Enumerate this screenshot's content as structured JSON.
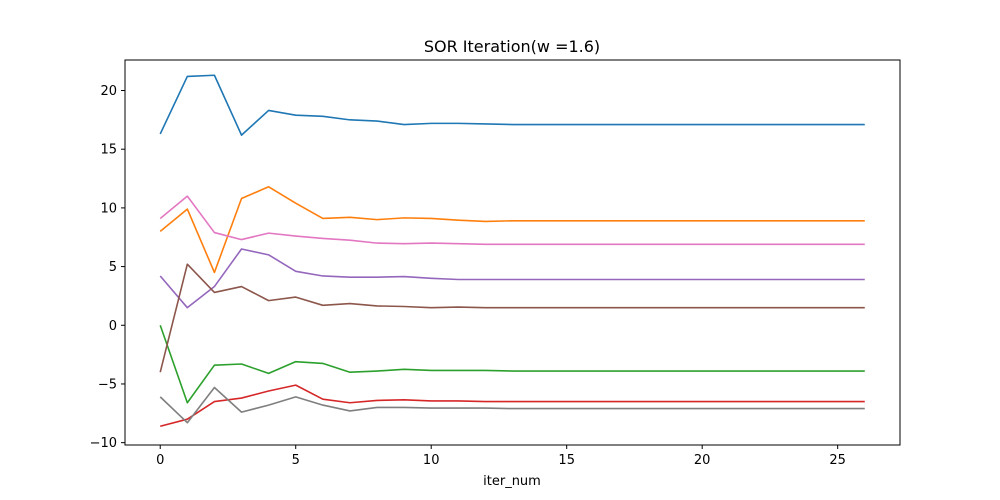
{
  "chart_data": {
    "type": "line",
    "title": "SOR Iteration(w =1.6)",
    "xlabel": "iter_num",
    "ylabel": "",
    "xlim": [
      -1.3,
      27.3
    ],
    "ylim": [
      -10.2,
      22.6
    ],
    "xticks": [
      0,
      5,
      10,
      15,
      20,
      25
    ],
    "yticks": [
      -10,
      -5,
      0,
      5,
      10,
      15,
      20
    ],
    "grid": false,
    "x": [
      0,
      1,
      2,
      3,
      4,
      5,
      6,
      7,
      8,
      9,
      10,
      11,
      12,
      13,
      14,
      15,
      16,
      17,
      18,
      19,
      20,
      21,
      22,
      23,
      24,
      25,
      26
    ],
    "series": [
      {
        "color": "#1f77b4",
        "values": [
          16.3,
          21.2,
          21.3,
          16.2,
          18.3,
          17.9,
          17.8,
          17.5,
          17.4,
          17.1,
          17.2,
          17.2,
          17.15,
          17.1,
          17.1,
          17.1,
          17.1,
          17.1,
          17.1,
          17.1,
          17.1,
          17.1,
          17.1,
          17.1,
          17.1,
          17.1,
          17.1
        ]
      },
      {
        "color": "#ff7f0e",
        "values": [
          8.0,
          9.9,
          4.5,
          10.8,
          11.8,
          10.4,
          9.1,
          9.2,
          9.0,
          9.15,
          9.1,
          8.95,
          8.85,
          8.9,
          8.9,
          8.9,
          8.9,
          8.9,
          8.9,
          8.9,
          8.9,
          8.9,
          8.9,
          8.9,
          8.9,
          8.9,
          8.9
        ]
      },
      {
        "color": "#2ca02c",
        "values": [
          0.0,
          -6.6,
          -3.4,
          -3.3,
          -4.1,
          -3.1,
          -3.25,
          -4.0,
          -3.9,
          -3.75,
          -3.85,
          -3.85,
          -3.85,
          -3.9,
          -3.9,
          -3.9,
          -3.9,
          -3.9,
          -3.9,
          -3.9,
          -3.9,
          -3.9,
          -3.9,
          -3.9,
          -3.9,
          -3.9,
          -3.9
        ]
      },
      {
        "color": "#d62728",
        "values": [
          -8.6,
          -8.0,
          -6.5,
          -6.2,
          -5.6,
          -5.1,
          -6.3,
          -6.6,
          -6.4,
          -6.35,
          -6.45,
          -6.45,
          -6.5,
          -6.5,
          -6.5,
          -6.5,
          -6.5,
          -6.5,
          -6.5,
          -6.5,
          -6.5,
          -6.5,
          -6.5,
          -6.5,
          -6.5,
          -6.5,
          -6.5
        ]
      },
      {
        "color": "#9467bd",
        "values": [
          4.2,
          1.5,
          3.3,
          6.5,
          6.0,
          4.6,
          4.2,
          4.1,
          4.1,
          4.15,
          4.0,
          3.9,
          3.9,
          3.9,
          3.9,
          3.9,
          3.9,
          3.9,
          3.9,
          3.9,
          3.9,
          3.9,
          3.9,
          3.9,
          3.9,
          3.9,
          3.9
        ]
      },
      {
        "color": "#8c564b",
        "values": [
          -4.0,
          5.2,
          2.8,
          3.3,
          2.1,
          2.4,
          1.7,
          1.85,
          1.65,
          1.6,
          1.5,
          1.55,
          1.5,
          1.5,
          1.5,
          1.5,
          1.5,
          1.5,
          1.5,
          1.5,
          1.5,
          1.5,
          1.5,
          1.5,
          1.5,
          1.5,
          1.5
        ]
      },
      {
        "color": "#e377c2",
        "values": [
          9.1,
          11.0,
          7.9,
          7.3,
          7.85,
          7.6,
          7.4,
          7.25,
          7.0,
          6.95,
          7.0,
          6.95,
          6.9,
          6.9,
          6.9,
          6.9,
          6.9,
          6.9,
          6.9,
          6.9,
          6.9,
          6.9,
          6.9,
          6.9,
          6.9,
          6.9,
          6.9
        ]
      },
      {
        "color": "#7f7f7f",
        "values": [
          -6.1,
          -8.3,
          -5.3,
          -7.4,
          -6.8,
          -6.1,
          -6.8,
          -7.3,
          -7.0,
          -7.0,
          -7.05,
          -7.05,
          -7.05,
          -7.1,
          -7.1,
          -7.1,
          -7.1,
          -7.1,
          -7.1,
          -7.1,
          -7.1,
          -7.1,
          -7.1,
          -7.1,
          -7.1,
          -7.1,
          -7.1
        ]
      }
    ]
  }
}
